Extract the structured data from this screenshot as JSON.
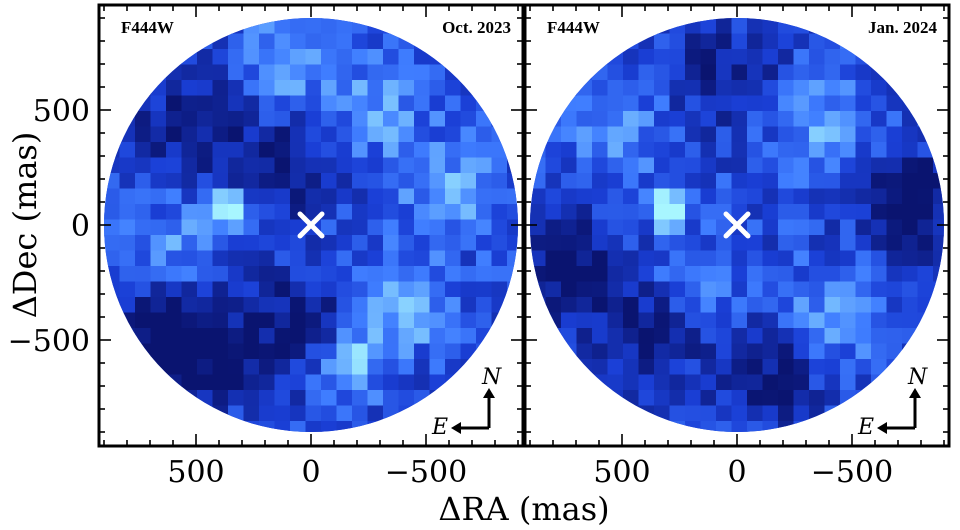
{
  "figure": {
    "xlabel": "ΔRA (mas)",
    "ylabel": "ΔDec (mas)"
  },
  "colors": {
    "dark": "#0a1470",
    "mid": "#1a3fd6",
    "bright": "#3f7dff",
    "peak": "#a8f6ff",
    "marker": "#ffffff"
  },
  "chart_data": [
    {
      "type": "heatmap",
      "filter": "F444W",
      "epoch": "Oct. 2023",
      "xlabel": "ΔRA (mas)",
      "ylabel": "ΔDec (mas)",
      "xlim": [
        900,
        -900
      ],
      "ylim": [
        -900,
        900
      ],
      "x_inverted": true,
      "x_ticks": [
        500,
        0,
        -500
      ],
      "y_ticks": [
        500,
        0,
        -500
      ],
      "x_tick_labels": [
        "500",
        "0",
        "−500"
      ],
      "y_tick_labels": [
        "500",
        "0",
        "−500"
      ],
      "field_radius_mas": 900,
      "star_position": [
        0,
        0
      ],
      "source": {
        "ra": 350,
        "dec": 70,
        "peak": 1.0
      },
      "blobs": [
        {
          "ra": -150,
          "dec": -600,
          "amp": 0.55,
          "w": 110
        },
        {
          "ra": -400,
          "dec": -350,
          "amp": 0.5,
          "w": 130
        },
        {
          "ra": -600,
          "dec": 150,
          "amp": 0.35,
          "w": 150
        },
        {
          "ra": 600,
          "dec": -100,
          "amp": 0.3,
          "w": 150
        },
        {
          "ra": 100,
          "dec": 700,
          "amp": 0.3,
          "w": 160
        },
        {
          "ra": -300,
          "dec": 500,
          "amp": 0.3,
          "w": 150
        },
        {
          "ra": 500,
          "dec": 450,
          "amp": -0.35,
          "w": 170
        },
        {
          "ra": 550,
          "dec": -450,
          "amp": -0.45,
          "w": 160
        },
        {
          "ra": 50,
          "dec": -450,
          "amp": -0.4,
          "w": 160
        },
        {
          "ra": 100,
          "dec": 250,
          "amp": -0.35,
          "w": 140
        },
        {
          "ra": 550,
          "dec": -650,
          "amp": -0.3,
          "w": 170
        }
      ],
      "noise_seed": 7,
      "compass": {
        "north": "N",
        "east": "E"
      }
    },
    {
      "type": "heatmap",
      "filter": "F444W",
      "epoch": "Jan. 2024",
      "xlabel": "ΔRA (mas)",
      "ylabel": "ΔDec (mas)",
      "xlim": [
        900,
        -900
      ],
      "ylim": [
        -900,
        900
      ],
      "x_inverted": true,
      "x_ticks": [
        500,
        0,
        -500
      ],
      "y_ticks": [
        500,
        0,
        -500
      ],
      "x_tick_labels": [
        "500",
        "0",
        "−500"
      ],
      "y_tick_labels": [
        "500",
        "0",
        "−500"
      ],
      "field_radius_mas": 900,
      "star_position": [
        0,
        0
      ],
      "source": {
        "ra": 300,
        "dec": 60,
        "peak": 1.0
      },
      "blobs": [
        {
          "ra": -400,
          "dec": -400,
          "amp": 0.35,
          "w": 150
        },
        {
          "ra": -350,
          "dec": 450,
          "amp": 0.35,
          "w": 150
        },
        {
          "ra": 200,
          "dec": -300,
          "amp": 0.3,
          "w": 150
        },
        {
          "ra": 500,
          "dec": 400,
          "amp": 0.25,
          "w": 160
        },
        {
          "ra": -750,
          "dec": 100,
          "amp": -0.55,
          "w": 140
        },
        {
          "ra": 700,
          "dec": -200,
          "amp": -0.45,
          "w": 150
        },
        {
          "ra": 350,
          "dec": -450,
          "amp": -0.4,
          "w": 150
        },
        {
          "ra": -150,
          "dec": -650,
          "amp": -0.35,
          "w": 160
        },
        {
          "ra": 50,
          "dec": 650,
          "amp": -0.3,
          "w": 160
        }
      ],
      "noise_seed": 19,
      "compass": {
        "north": "N",
        "east": "E"
      }
    }
  ]
}
